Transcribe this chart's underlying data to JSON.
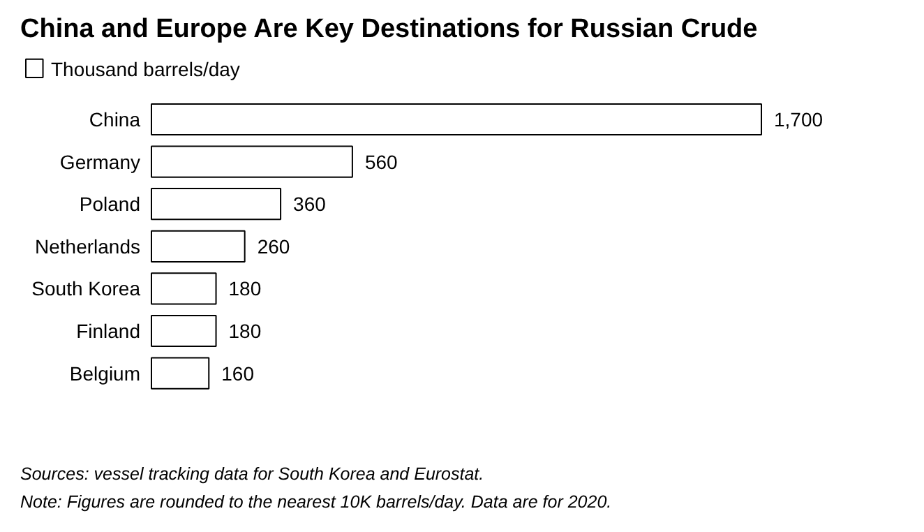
{
  "chart_data": {
    "type": "bar",
    "orientation": "horizontal",
    "title": "China and Europe Are Key Destinations for Russian Crude",
    "categories": [
      "China",
      "Germany",
      "Poland",
      "Netherlands",
      "South Korea",
      "Finland",
      "Belgium"
    ],
    "series": [
      {
        "name": "Thousand barrels/day",
        "color": "#ffffff",
        "values": [
          1700,
          560,
          360,
          260,
          180,
          180,
          160
        ],
        "value_labels": [
          "1,700",
          "560",
          "360",
          "260",
          "180",
          "180",
          "160"
        ]
      }
    ],
    "legend": "top left",
    "grid": false,
    "annotations": [
      "Sources: vessel tracking data for South Korea and Eurostat.",
      "Note: Figures are rounded to the nearest 10K barrels/day. Data are for 2020."
    ]
  }
}
